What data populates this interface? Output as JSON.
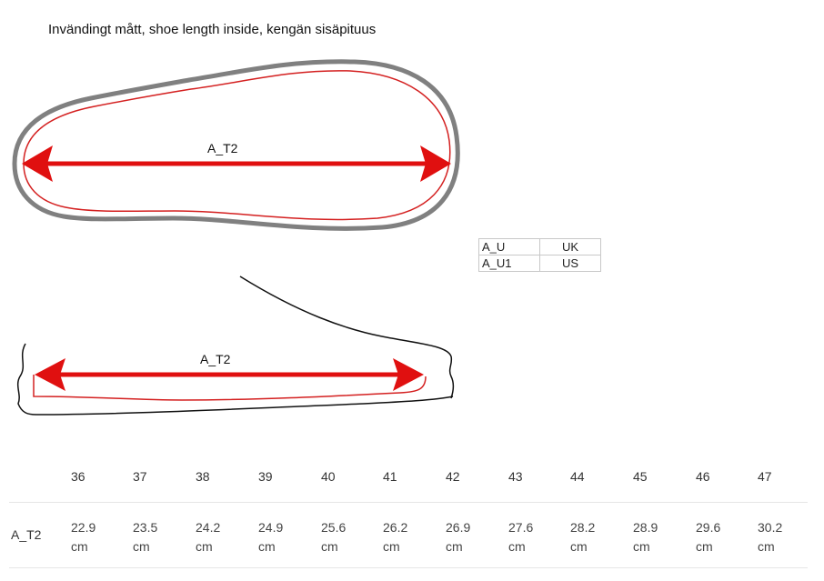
{
  "title": "Invändingt mått, shoe length inside, kengän sisäpituus",
  "top_view": {
    "measure_label": "A_T2"
  },
  "side_view": {
    "measure_label": "A_T2"
  },
  "legend": [
    {
      "code": "A_U",
      "value": "UK"
    },
    {
      "code": "A_U1",
      "value": "US"
    }
  ],
  "size_table": {
    "row_label": "A_T2",
    "sizes": [
      "36",
      "37",
      "38",
      "39",
      "40",
      "41",
      "42",
      "43",
      "44",
      "45",
      "46",
      "47"
    ],
    "lengths": [
      "22.9",
      "23.5",
      "24.2",
      "24.9",
      "25.6",
      "26.2",
      "26.9",
      "27.6",
      "28.2",
      "28.9",
      "29.6",
      "30.2"
    ],
    "unit": "cm"
  },
  "colors": {
    "arrow": "#e01010",
    "inner_outline": "#d42020",
    "outer_outline": "#808080"
  }
}
